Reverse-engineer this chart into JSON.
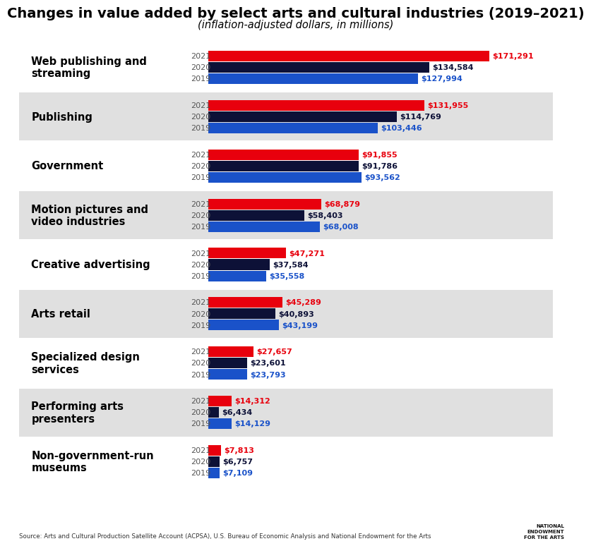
{
  "title": "Changes in value added by select arts and cultural industries (2019–2021)",
  "subtitle": "(inflation-adjusted dollars, in millions)",
  "source": "Source: Arts and Cultural Production Satellite Account (ACPSA), U.S. Bureau of Economic Analysis and National Endowment for the Arts",
  "industries": [
    "Web publishing and\nstreaming",
    "Publishing",
    "Government",
    "Motion pictures and\nvideo industries",
    "Creative advertising",
    "Arts retail",
    "Specialized design\nservices",
    "Performing arts\npresenters",
    "Non-government-run\nmuseums"
  ],
  "data": {
    "2019": [
      127994,
      103446,
      93562,
      68008,
      35558,
      43199,
      23793,
      14129,
      7109
    ],
    "2020": [
      134584,
      114769,
      91786,
      58403,
      37584,
      40893,
      23601,
      6434,
      6757
    ],
    "2021": [
      171291,
      131955,
      91855,
      68879,
      47271,
      45289,
      27657,
      14312,
      7813
    ]
  },
  "labels": {
    "2019": [
      "$127,994",
      "$103,446",
      "$93,562",
      "$68,008",
      "$35,558",
      "$43,199",
      "$23,793",
      "$14,129",
      "$7,109"
    ],
    "2020": [
      "$134,584",
      "$114,769",
      "$91,786",
      "$58,403",
      "$37,584",
      "$40,893",
      "$23,601",
      "$6,434",
      "$6,757"
    ],
    "2021": [
      "$171,291",
      "$131,955",
      "$91,855",
      "$68,879",
      "$47,271",
      "$45,289",
      "$27,657",
      "$14,312",
      "$7,813"
    ]
  },
  "colors": {
    "2019": "#1A52C9",
    "2020": "#0D1137",
    "2021": "#E8000D"
  },
  "label_colors": {
    "2019": "#1A52C9",
    "2020": "#0D1137",
    "2021": "#E8000D"
  },
  "bar_height": 0.23,
  "background_color": "#FFFFFF",
  "stripe_color": "#E0E0E0",
  "title_fontsize": 14,
  "subtitle_fontsize": 10.5,
  "label_fontsize": 8,
  "industry_fontsize": 10.5,
  "year_fontsize": 8
}
